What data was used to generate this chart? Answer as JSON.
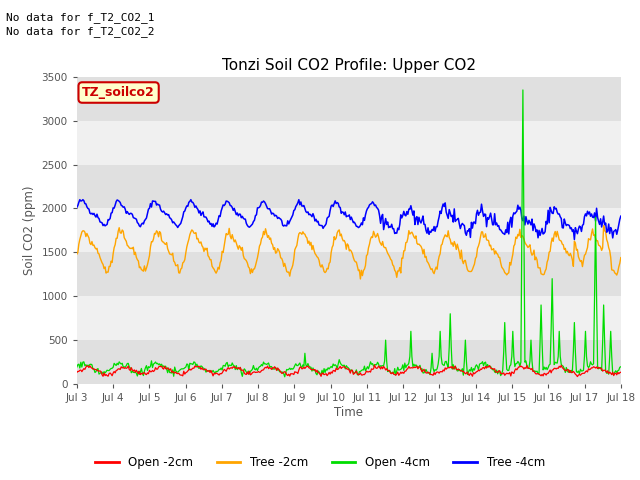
{
  "title": "Tonzi Soil CO2 Profile: Upper CO2",
  "ylabel": "Soil CO2 (ppm)",
  "xlabel": "Time",
  "ylim": [
    0,
    3500
  ],
  "yticks": [
    0,
    500,
    1000,
    1500,
    2000,
    2500,
    3000,
    3500
  ],
  "xtick_labels": [
    "Jul 3",
    "Jul 4",
    "Jul 5",
    "Jul 6",
    "Jul 7",
    "Jul 8",
    "Jul 9",
    "Jul 10",
    "Jul 11",
    "Jul 12",
    "Jul 13",
    "Jul 14",
    "Jul 15",
    "Jul 16",
    "Jul 17",
    "Jul 18"
  ],
  "colors": {
    "open_2cm": "#ff0000",
    "tree_2cm": "#ffa500",
    "open_4cm": "#00dd00",
    "tree_4cm": "#0000ff"
  },
  "legend_labels": [
    "Open -2cm",
    "Tree -2cm",
    "Open -4cm",
    "Tree -4cm"
  ],
  "annotation_text1": "No data for f_T2_CO2_1",
  "annotation_text2": "No data for f_T2_CO2_2",
  "inset_label": "TZ_soilco2",
  "inset_bg": "#ffffcc",
  "inset_border": "#cc0000",
  "plot_bg_dark": "#e0e0e0",
  "plot_bg_light": "#f0f0f0",
  "n_points": 540,
  "n_days": 15
}
